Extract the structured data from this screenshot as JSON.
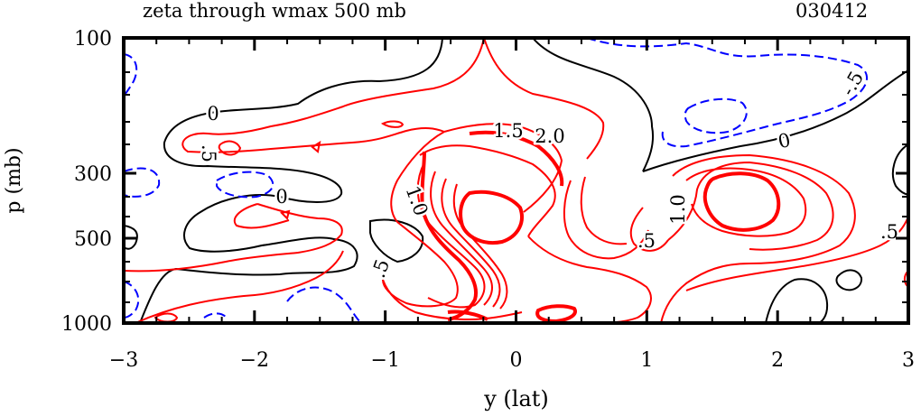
{
  "header": {
    "title": "zeta through wmax 500 mb",
    "date_code": "030412"
  },
  "chart_data": {
    "type": "contour",
    "xlabel": "y (lat)",
    "ylabel": "p (mb)",
    "xlim": [
      -3,
      3
    ],
    "x_ticks": [
      "-3",
      "-2",
      "-1",
      "0",
      "1",
      "2",
      "3"
    ],
    "y_ticks": [
      "100",
      "300",
      "500",
      "1000"
    ],
    "y_axis": "pressure, log-like scale, 1000 at bottom and 100 at top",
    "contour_labels": [
      "0",
      "0",
      "0",
      ".5",
      ".5",
      ".5",
      ".5",
      "1.0",
      "1.0",
      "1.5",
      "2.0",
      "-.5"
    ],
    "colors": {
      "zero": "#000000",
      "positive": "#ff0000",
      "negative": "#0000ff",
      "frame": "#000000"
    },
    "series": [
      {
        "sign": "zero",
        "style": "solid black"
      },
      {
        "sign": "positive",
        "style": "solid red"
      },
      {
        "sign": "negative",
        "style": "dashed blue"
      }
    ]
  }
}
